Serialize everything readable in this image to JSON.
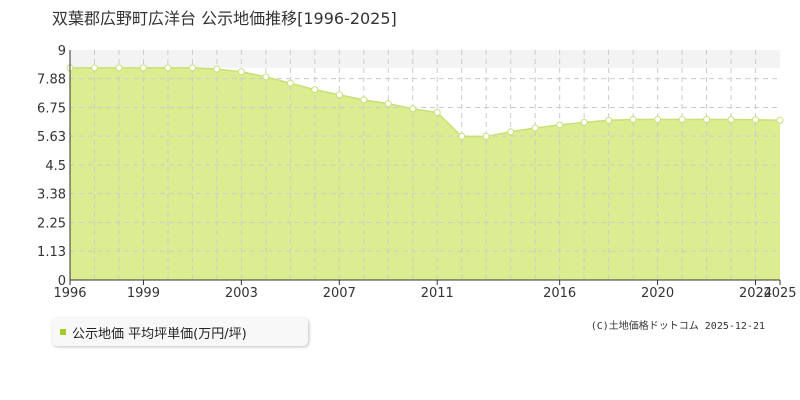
{
  "colors": {
    "fill": "#dcec91",
    "line": "#c9e07a",
    "point_fill": "#ffffff",
    "grid": "#cccccc",
    "band": "#f3f3f3",
    "legend_marker": "#a5cc2e"
  },
  "chart_data": {
    "type": "area",
    "title": "双葉郡広野町広洋台 公示地価推移[1996-2025]",
    "xlim": [
      1996,
      2025
    ],
    "ylim": [
      0,
      9
    ],
    "y_ticks": [
      "9",
      "7.88",
      "6.75",
      "5.63",
      "4.5",
      "3.38",
      "2.25",
      "1.13",
      "0"
    ],
    "x_ticks": [
      "1996",
      "1999",
      "2003",
      "2007",
      "2011",
      "2016",
      "2020",
      "2024",
      "2025"
    ],
    "grid": true,
    "legend_placement": "bottom-left",
    "series": [
      {
        "name": "公示地価 平均坪単価(万円/坪)",
        "x": [
          1996,
          1997,
          1998,
          1999,
          2000,
          2001,
          2002,
          2003,
          2004,
          2005,
          2006,
          2007,
          2008,
          2009,
          2010,
          2011,
          2012,
          2013,
          2014,
          2015,
          2016,
          2017,
          2018,
          2019,
          2020,
          2021,
          2022,
          2023,
          2024,
          2025
        ],
        "values": [
          8.3,
          8.3,
          8.3,
          8.3,
          8.3,
          8.3,
          8.25,
          8.15,
          7.95,
          7.7,
          7.45,
          7.25,
          7.05,
          6.9,
          6.7,
          6.55,
          5.62,
          5.62,
          5.8,
          5.95,
          6.07,
          6.17,
          6.25,
          6.28,
          6.28,
          6.28,
          6.28,
          6.28,
          6.27,
          6.25
        ]
      }
    ]
  },
  "footer": {
    "credit": "(C)土地価格ドットコム 2025-12-21"
  }
}
